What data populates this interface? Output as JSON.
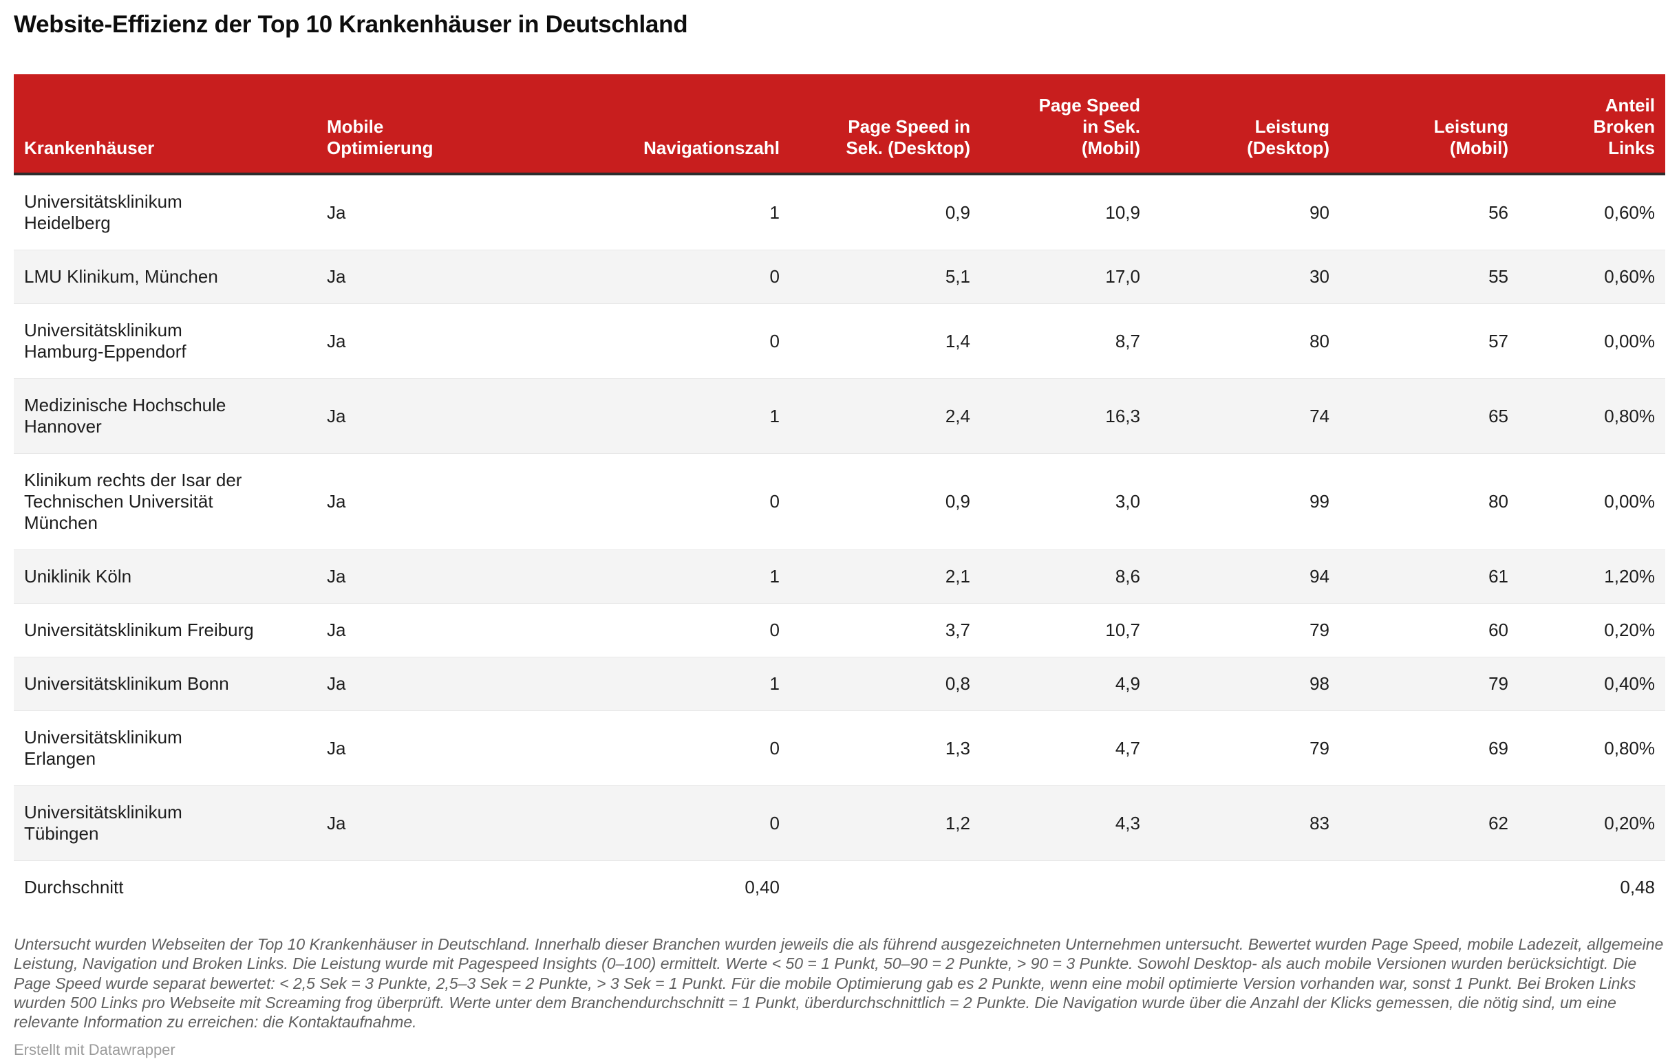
{
  "title": "Website-Effizienz der Top 10 Krankenhäuser in Deutschland",
  "colors": {
    "header_background": "#c81e1e",
    "header_text": "#ffffff",
    "zebra_row": "#f4f4f4",
    "header_underline": "#2d2d2d",
    "body_text": "#1d1d1d",
    "footnote_text": "#5f5f5f",
    "credit_text": "#9b9b9b"
  },
  "table": {
    "header": [
      {
        "label": "Krankenhäuser",
        "align": "left"
      },
      {
        "label": "Mobile\nOptimierung",
        "align": "left"
      },
      {
        "label": "Navigationszahl",
        "align": "right"
      },
      {
        "label": "Page Speed in\nSek. (Desktop)",
        "align": "right"
      },
      {
        "label": "Page Speed\nin Sek.\n(Mobil)",
        "align": "right"
      },
      {
        "label": "Leistung\n(Desktop)",
        "align": "right"
      },
      {
        "label": "Leistung\n(Mobil)",
        "align": "right"
      },
      {
        "label": "Anteil\nBroken\nLinks",
        "align": "right"
      }
    ]
  },
  "chart_data": {
    "type": "table",
    "title": "Website-Effizienz der Top 10 Krankenhäuser in Deutschland",
    "columns": [
      "Krankenhäuser",
      "Mobile Optimierung",
      "Navigationszahl",
      "Page Speed in Sek. (Desktop)",
      "Page Speed in Sek. (Mobil)",
      "Leistung (Desktop)",
      "Leistung (Mobil)",
      "Anteil Broken Links"
    ],
    "rows": [
      [
        "Universitätsklinikum\nHeidelberg",
        "Ja",
        "1",
        "0,9",
        "10,9",
        "90",
        "56",
        "0,60%"
      ],
      [
        "LMU Klinikum, München",
        "Ja",
        "0",
        "5,1",
        "17,0",
        "30",
        "55",
        "0,60%"
      ],
      [
        "Universitätsklinikum\nHamburg-Eppendorf",
        "Ja",
        "0",
        "1,4",
        "8,7",
        "80",
        "57",
        "0,00%"
      ],
      [
        "Medizinische Hochschule\nHannover",
        "Ja",
        "1",
        "2,4",
        "16,3",
        "74",
        "65",
        "0,80%"
      ],
      [
        "Klinikum rechts der Isar der\nTechnischen Universität\nMünchen",
        "Ja",
        "0",
        "0,9",
        "3,0",
        "99",
        "80",
        "0,00%"
      ],
      [
        "Uniklinik Köln",
        "Ja",
        "1",
        "2,1",
        "8,6",
        "94",
        "61",
        "1,20%"
      ],
      [
        "Universitätsklinikum Freiburg",
        "Ja",
        "0",
        "3,7",
        "10,7",
        "79",
        "60",
        "0,20%"
      ],
      [
        "Universitätsklinikum Bonn",
        "Ja",
        "1",
        "0,8",
        "4,9",
        "98",
        "79",
        "0,40%"
      ],
      [
        "Universitätsklinikum\nErlangen",
        "Ja",
        "0",
        "1,3",
        "4,7",
        "79",
        "69",
        "0,80%"
      ],
      [
        "Universitätsklinikum\nTübingen",
        "Ja",
        "0",
        "1,2",
        "4,3",
        "83",
        "62",
        "0,20%"
      ],
      [
        "Durchschnitt",
        "",
        "0,40",
        "",
        "",
        "",
        "",
        "0,48"
      ]
    ]
  },
  "footnote": "Untersucht wurden Webseiten der Top 10 Krankenhäuser in Deutschland. Innerhalb dieser Branchen wurden jeweils die als führend ausgezeichneten Unternehmen untersucht. Bewertet wurden Page Speed, mobile Ladezeit, allgemeine Leistung, Navigation und Broken Links. Die Leistung wurde mit Pagespeed Insights (0–100) ermittelt. Werte < 50 = 1 Punkt, 50–90 = 2 Punkte, > 90 = 3 Punkte. Sowohl Desktop- als auch mobile Versionen wurden berücksichtigt. Die Page Speed wurde separat bewertet: < 2,5 Sek = 3 Punkte, 2,5–3 Sek = 2 Punkte, > 3 Sek = 1 Punkt. Für die mobile Optimierung gab es 2 Punkte, wenn eine mobil optimierte Version vorhanden war, sonst 1 Punkt. Bei Broken Links wurden 500 Links pro Webseite mit Screaming frog überprüft. Werte unter dem Branchendurchschnitt = 1 Punkt, überdurchschnittlich = 2 Punkte. Die Navigation wurde über die Anzahl der Klicks gemessen, die nötig sind, um eine relevante Information zu erreichen: die Kontaktaufnahme.",
  "credit": "Erstellt mit Datawrapper"
}
